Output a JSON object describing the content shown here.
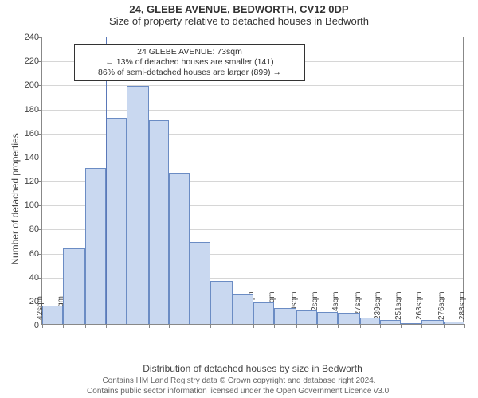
{
  "title": "24, GLEBE AVENUE, BEDWORTH, CV12 0DP",
  "subtitle": "Size of property relative to detached houses in Bedworth",
  "y_axis_label": "Number of detached properties",
  "x_axis_label": "Distribution of detached houses by size in Bedworth",
  "footnote_line1": "Contains HM Land Registry data © Crown copyright and database right 2024.",
  "footnote_line2": "Contains public sector information licensed under the Open Government Licence v3.0.",
  "chart": {
    "type": "histogram",
    "ylim": [
      0,
      240
    ],
    "ytick_step": 20,
    "xticks": [
      42,
      54,
      67,
      79,
      91,
      104,
      116,
      128,
      140,
      153,
      165,
      177,
      190,
      202,
      214,
      227,
      239,
      251,
      263,
      276,
      288
    ],
    "xtick_suffix": "sqm",
    "bar_fill": "#c9d8f0",
    "bar_stroke": "#6b8cc4",
    "grid_color": "#d6d6d6",
    "axis_color": "#888888",
    "values": [
      15,
      63,
      130,
      172,
      198,
      170,
      126,
      68,
      36,
      25,
      18,
      13,
      11,
      10,
      9,
      5,
      3,
      0,
      3,
      2
    ],
    "reference_lines": [
      {
        "x": 73,
        "color": "#cc3333"
      },
      {
        "x": 79,
        "color": "#5a78b8"
      }
    ],
    "annotation": {
      "lines": [
        "24 GLEBE AVENUE: 73sqm",
        "← 13% of detached houses are smaller (141)",
        "86% of semi-detached houses are larger (899) →"
      ],
      "x_center": 175,
      "y_top": 8
    }
  }
}
